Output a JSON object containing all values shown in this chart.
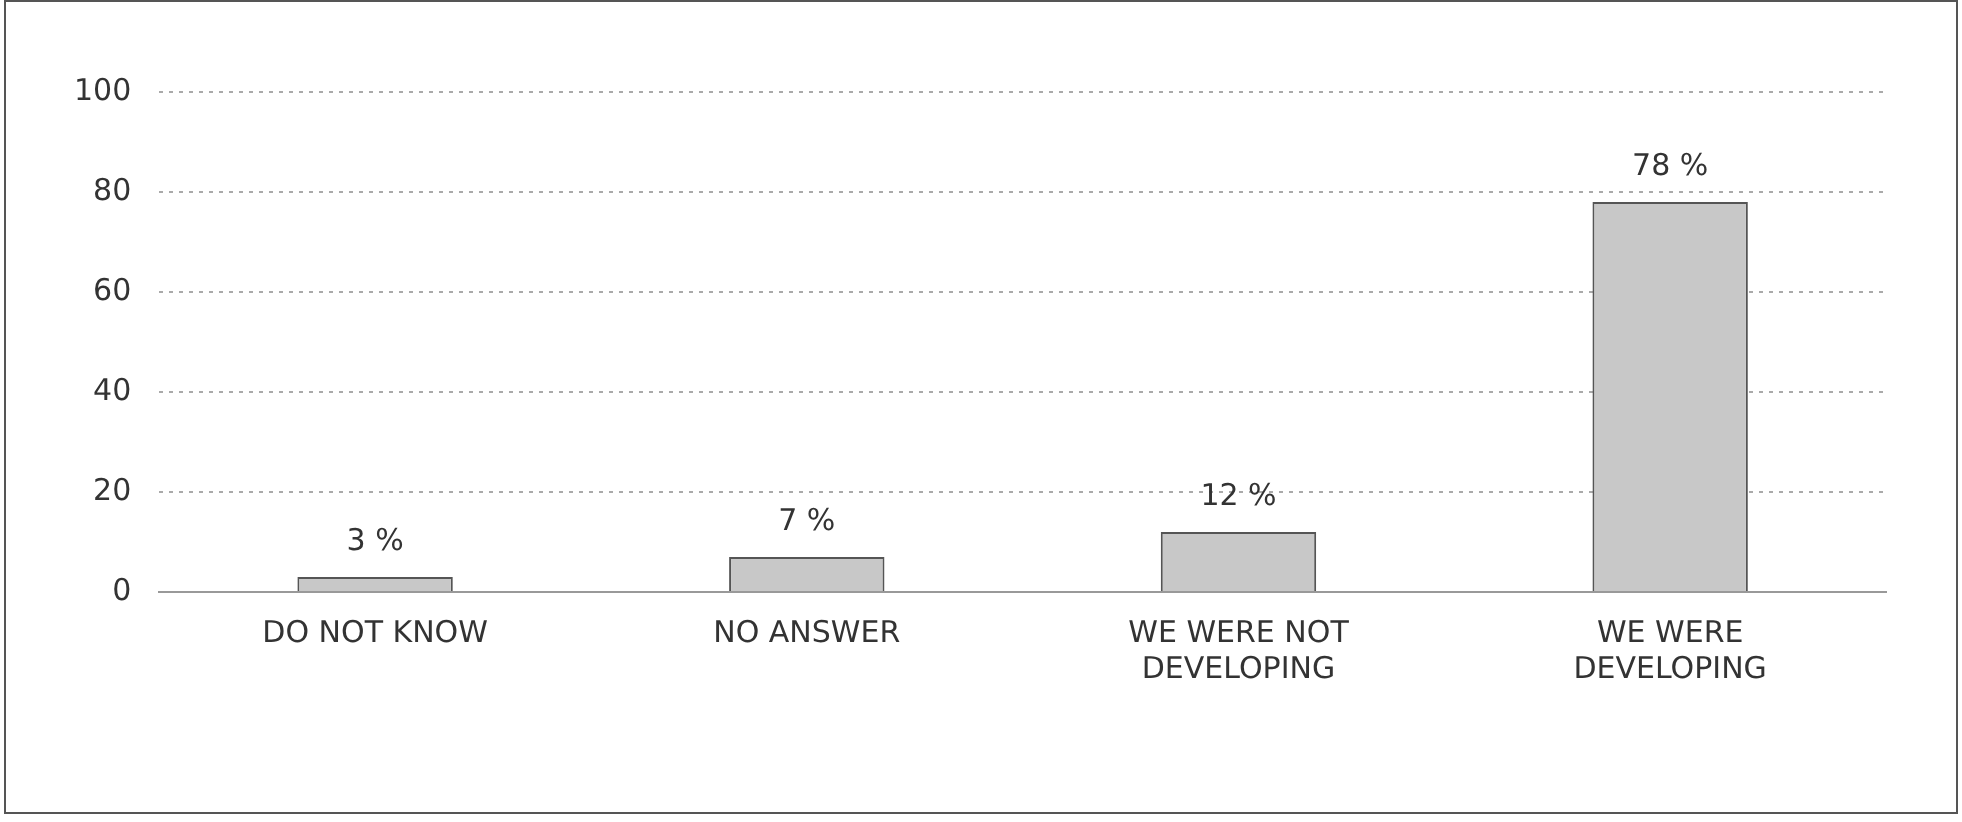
{
  "chart_data": {
    "type": "bar",
    "categories": [
      "DO NOT KNOW",
      "NO ANSWER",
      "WE WERE NOT DEVELOPING",
      "WE WERE DEVELOPING"
    ],
    "values": [
      3,
      7,
      12,
      78
    ],
    "value_labels": [
      "3 %",
      "7 %",
      "12 %",
      "78 %"
    ],
    "color": "#c8c8c8",
    "ylim": [
      0,
      100
    ],
    "yticks": [
      0,
      20,
      40,
      60,
      80,
      100
    ],
    "grid": "y",
    "legend": false
  }
}
